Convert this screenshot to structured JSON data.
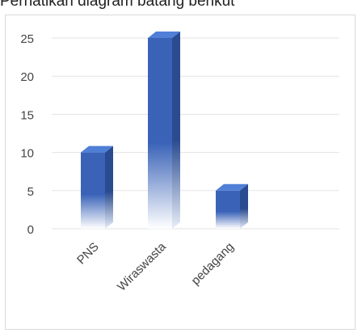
{
  "heading": "Perhatikan diagram batang berikut",
  "chart_data": {
    "type": "bar",
    "categories": [
      "PNS",
      "Wiraswasta",
      "pedagang"
    ],
    "values": [
      10,
      25,
      5
    ],
    "ylim": [
      0,
      25
    ],
    "yticks": [
      0,
      5,
      10,
      15,
      20,
      25
    ],
    "grid": true,
    "bar_color": "#3a63b8",
    "bar_side_color": "#2a4b8f",
    "bar_top_color": "#4f7fd6"
  }
}
